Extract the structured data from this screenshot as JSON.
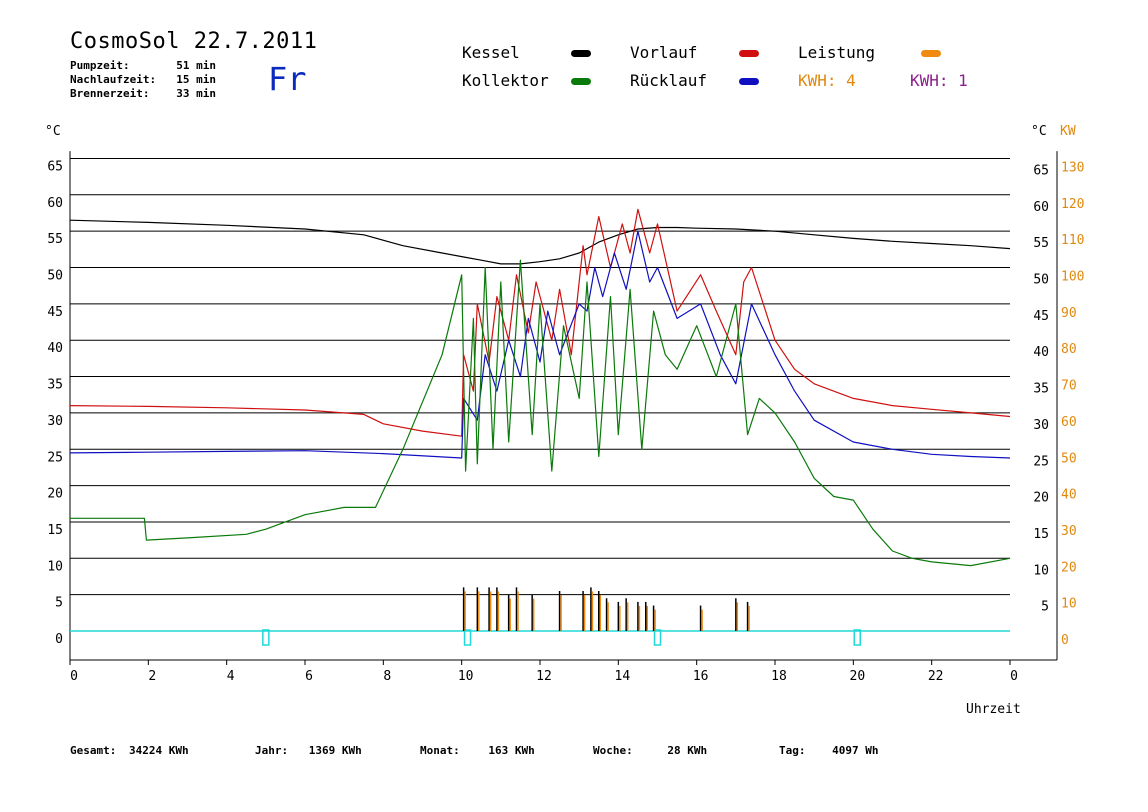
{
  "header": {
    "title": "CosmoSol 22.7.2011",
    "day": "Fr",
    "info": [
      {
        "label": "Pumpzeit:",
        "value": "51 min"
      },
      {
        "label": "Nachlaufzeit:",
        "value": "15 min"
      },
      {
        "label": "Brennerzeit:",
        "value": "33 min"
      }
    ]
  },
  "legend": {
    "kessel": "Kessel",
    "kollektor": "Kollektor",
    "vorlauf": "Vorlauf",
    "ruecklauf": "Rücklauf",
    "leistung": "Leistung",
    "kwh_a": "KWH: 4",
    "kwh_b": "KWH: 1"
  },
  "axes": {
    "left_unit": "°C",
    "right_unit": "°C",
    "right_unit_kw": "KW",
    "x_label": "Uhrzeit",
    "x_ticks": [
      "0",
      "2",
      "4",
      "6",
      "8",
      "10",
      "12",
      "14",
      "16",
      "18",
      "20",
      "22",
      "0"
    ],
    "y_left_ticks": [
      "65",
      "60",
      "55",
      "50",
      "45",
      "40",
      "35",
      "30",
      "25",
      "20",
      "15",
      "10",
      "5",
      "0"
    ],
    "y_right_ticks": [
      "65",
      "60",
      "55",
      "50",
      "45",
      "40",
      "35",
      "30",
      "25",
      "20",
      "15",
      "10",
      "5"
    ],
    "y_kw_ticks": [
      "130",
      "120",
      "110",
      "100",
      "90",
      "80",
      "70",
      "60",
      "50",
      "40",
      "30",
      "20",
      "10",
      "0"
    ]
  },
  "footer": [
    {
      "label": "Gesamt:",
      "value": "34224 KWh"
    },
    {
      "label": "Jahr:",
      "value": "1369 KWh"
    },
    {
      "label": "Monat:",
      "value": "163 KWh"
    },
    {
      "label": "Woche:",
      "value": "28 KWh"
    },
    {
      "label": "Tag:",
      "value": "4097 Wh"
    }
  ],
  "colors": {
    "kessel": "#000000",
    "kollektor": "#0a7a0a",
    "vorlauf": "#d01010",
    "ruecklauf": "#1010c0",
    "leistung": "#f08a10",
    "pump": "#20d8d8",
    "kwh_a": "#e0890f",
    "kwh_b": "#8b1f8b"
  },
  "chart_data": {
    "type": "line",
    "title": "CosmoSol 22.7.2011",
    "xlabel": "Uhrzeit",
    "ylabel": "°C",
    "xlim": [
      0,
      24
    ],
    "ylim": [
      0,
      65
    ],
    "grid": true,
    "series": [
      {
        "name": "Kessel",
        "x": [
          0,
          2,
          4,
          6,
          7.5,
          8.5,
          9.5,
          10,
          10.5,
          11,
          11.5,
          12,
          12.5,
          13,
          13.5,
          14,
          14.5,
          15,
          15.5,
          16,
          17,
          18,
          19,
          20,
          21,
          22,
          23,
          24
        ],
        "values": [
          56.5,
          56.2,
          55.8,
          55.3,
          54.5,
          53,
          52,
          51.5,
          51,
          50.5,
          50.5,
          50.8,
          51.2,
          52,
          53.5,
          54.5,
          55.3,
          55.5,
          55.5,
          55.4,
          55.3,
          55,
          54.5,
          54,
          53.6,
          53.3,
          53,
          52.6
        ]
      },
      {
        "name": "Vorlauf",
        "x": [
          0,
          2,
          4,
          6,
          7.5,
          8,
          9,
          10,
          10.05,
          10.3,
          10.4,
          10.7,
          10.9,
          11.2,
          11.4,
          11.7,
          11.9,
          12.3,
          12.5,
          12.8,
          13.1,
          13.2,
          13.5,
          13.8,
          14.1,
          14.3,
          14.5,
          14.8,
          15,
          15.5,
          16.1,
          16.5,
          17,
          17.2,
          17.4,
          18,
          18.5,
          19,
          20,
          21,
          22,
          23,
          24
        ],
        "values": [
          31,
          30.9,
          30.7,
          30.4,
          29.8,
          28.5,
          27.5,
          26.8,
          38,
          33,
          45,
          37,
          46,
          40,
          49,
          41,
          48,
          40,
          47,
          38,
          53,
          49,
          57,
          50,
          56,
          52,
          58,
          52,
          56,
          44,
          49,
          44,
          38,
          48,
          50,
          40,
          36,
          34,
          32,
          31,
          30.5,
          30,
          29.5
        ]
      },
      {
        "name": "Rücklauf",
        "x": [
          0,
          2,
          4,
          6,
          8,
          10,
          10.05,
          10.4,
          10.6,
          10.9,
          11.2,
          11.5,
          11.7,
          12,
          12.2,
          12.5,
          13,
          13.2,
          13.4,
          13.6,
          13.9,
          14.2,
          14.5,
          14.8,
          15,
          15.5,
          16.1,
          16.6,
          17,
          17.4,
          18,
          18.5,
          19,
          20,
          21,
          22,
          23,
          24
        ],
        "values": [
          24.5,
          24.6,
          24.7,
          24.8,
          24.4,
          23.8,
          32,
          29,
          38,
          33,
          40,
          35,
          43,
          37,
          44,
          38,
          45,
          44,
          50,
          46,
          52,
          47,
          55,
          48,
          50,
          43,
          45,
          38,
          34,
          45,
          38,
          33,
          29,
          26,
          25,
          24.3,
          24,
          23.8
        ]
      },
      {
        "name": "Kollektor",
        "x": [
          0,
          1.9,
          1.95,
          3,
          4.5,
          5,
          6,
          7,
          7.8,
          8.5,
          9.5,
          10,
          10.1,
          10.3,
          10.4,
          10.6,
          10.8,
          11,
          11.2,
          11.5,
          11.8,
          12,
          12.3,
          12.6,
          13,
          13.2,
          13.5,
          13.8,
          14,
          14.3,
          14.6,
          14.9,
          15.2,
          15.5,
          16,
          16.5,
          17,
          17.3,
          17.6,
          18,
          18.5,
          19,
          19.5,
          20,
          20.5,
          21,
          21.5,
          22,
          23,
          24
        ],
        "values": [
          15.5,
          15.5,
          12.5,
          12.8,
          13.3,
          14,
          16,
          17,
          17,
          25,
          38,
          49,
          22,
          43,
          23,
          50,
          25,
          48,
          26,
          51,
          27,
          45,
          22,
          42,
          32,
          48,
          24,
          46,
          27,
          47,
          25,
          44,
          38,
          36,
          42,
          35,
          45,
          27,
          32,
          30,
          26,
          21,
          18.5,
          18,
          14,
          11,
          10,
          9.5,
          9,
          10
        ]
      },
      {
        "name": "Leistung",
        "type": "spikes",
        "x": [
          10.05,
          10.4,
          10.7,
          10.9,
          11.2,
          11.4,
          11.8,
          12.5,
          13.1,
          13.3,
          13.5,
          13.7,
          14,
          14.2,
          14.5,
          14.7,
          14.9,
          16.1,
          17,
          17.3
        ],
        "values": [
          12,
          12,
          12,
          12,
          10,
          12,
          10,
          11,
          11,
          12,
          11,
          9,
          8,
          9,
          8,
          8,
          7,
          7,
          9,
          8
        ]
      }
    ],
    "secondary_y": {
      "label": "KW",
      "ylim": [
        0,
        130
      ]
    }
  }
}
